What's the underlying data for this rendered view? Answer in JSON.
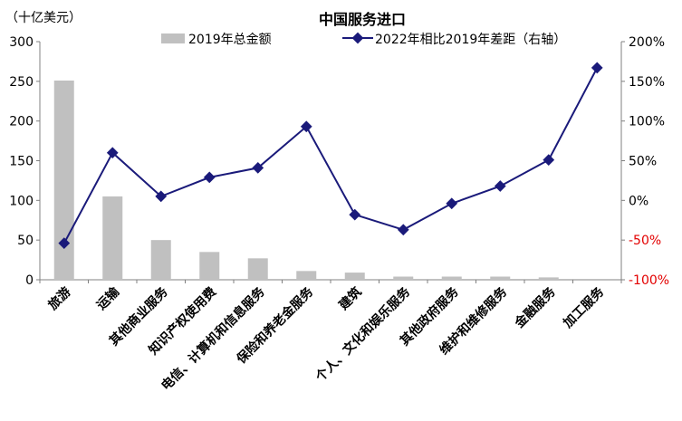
{
  "chart_data": {
    "type": "bar",
    "title": "中国服务进口",
    "unit_left": "（十亿美元）",
    "categories": [
      "旅游",
      "运输",
      "其他商业服务",
      "知识产权使用费",
      "电信、计算机和信息服务",
      "保险和养老金服务",
      "建筑",
      "个人、文化和娱乐服务",
      "其他政府服务",
      "维护和维修服务",
      "金融服务",
      "加工服务"
    ],
    "series": [
      {
        "name": "2019年总金额",
        "type": "bar",
        "axis": "left",
        "values": [
          251,
          105,
          50,
          35,
          27,
          11,
          9,
          4,
          4,
          4,
          3,
          0
        ]
      },
      {
        "name": "2022年相比2019年差距（右轴）",
        "type": "line",
        "axis": "right",
        "values": [
          -0.54,
          0.6,
          0.05,
          0.29,
          0.41,
          0.93,
          -0.18,
          -0.37,
          -0.04,
          0.18,
          0.51,
          1.67
        ]
      }
    ],
    "ylim_left": [
      0,
      300
    ],
    "yticks_left": [
      0,
      50,
      100,
      150,
      200,
      250,
      300
    ],
    "ylim_right": [
      -1.0,
      2.0
    ],
    "yticks_right": [
      -1.0,
      -0.5,
      0.0,
      0.5,
      1.0,
      1.5,
      2.0
    ],
    "yticks_right_labels": [
      "-100%",
      "-50%",
      "0%",
      "50%",
      "100%",
      "150%",
      "200%"
    ],
    "legend_position": "top-center",
    "grid": false,
    "colors": {
      "bar": "#c0c0c0",
      "line": "#1a1a7a",
      "negative_tick": "#e30000"
    }
  }
}
